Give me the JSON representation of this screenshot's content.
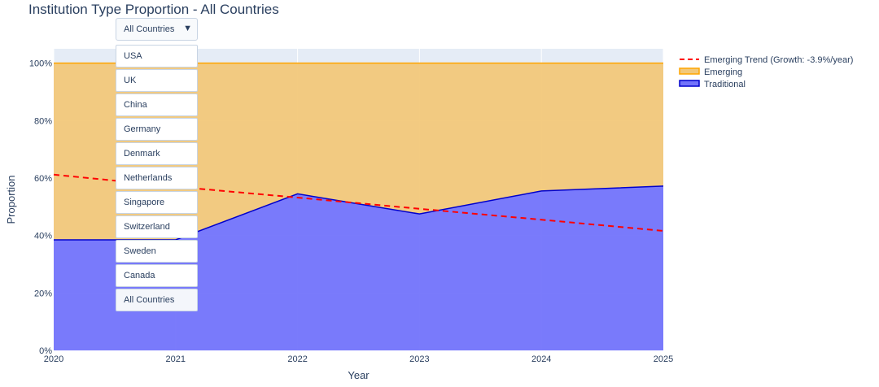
{
  "chart_data": {
    "type": "area",
    "title": "Institution Type Proportion - All Countries",
    "xlabel": "Year",
    "ylabel": "Proportion",
    "x": [
      2020,
      2021,
      2022,
      2023,
      2024,
      2025
    ],
    "xlim": [
      2020,
      2025
    ],
    "ylim": [
      0,
      1.05
    ],
    "y_ticks": [
      0,
      0.2,
      0.4,
      0.6,
      0.8,
      1.0
    ],
    "y_tick_labels": [
      "0%",
      "20%",
      "40%",
      "60%",
      "80%",
      "100%"
    ],
    "stacked_normalized": true,
    "grid": true,
    "legend_position": "top-right",
    "series": [
      {
        "name": "Traditional",
        "values": [
          0.385,
          0.385,
          0.545,
          0.475,
          0.555,
          0.572
        ],
        "color": "#0000cc",
        "fill": "#7374fb"
      },
      {
        "name": "Emerging",
        "values": [
          0.615,
          0.615,
          0.455,
          0.525,
          0.445,
          0.428
        ],
        "color": "#ffa500",
        "fill": "#f2c87a"
      }
    ],
    "trend": {
      "name": "Emerging Trend (Growth: -3.9%/year)",
      "values": [
        0.612,
        0.57,
        0.532,
        0.493,
        0.455,
        0.416
      ],
      "color": "#ff0000"
    }
  },
  "dropdown": {
    "selected": "All Countries",
    "arrow": "▼",
    "options": [
      "USA",
      "UK",
      "China",
      "Germany",
      "Denmark",
      "Netherlands",
      "Singapore",
      "Switzerland",
      "Sweden",
      "Canada",
      "All Countries"
    ]
  }
}
